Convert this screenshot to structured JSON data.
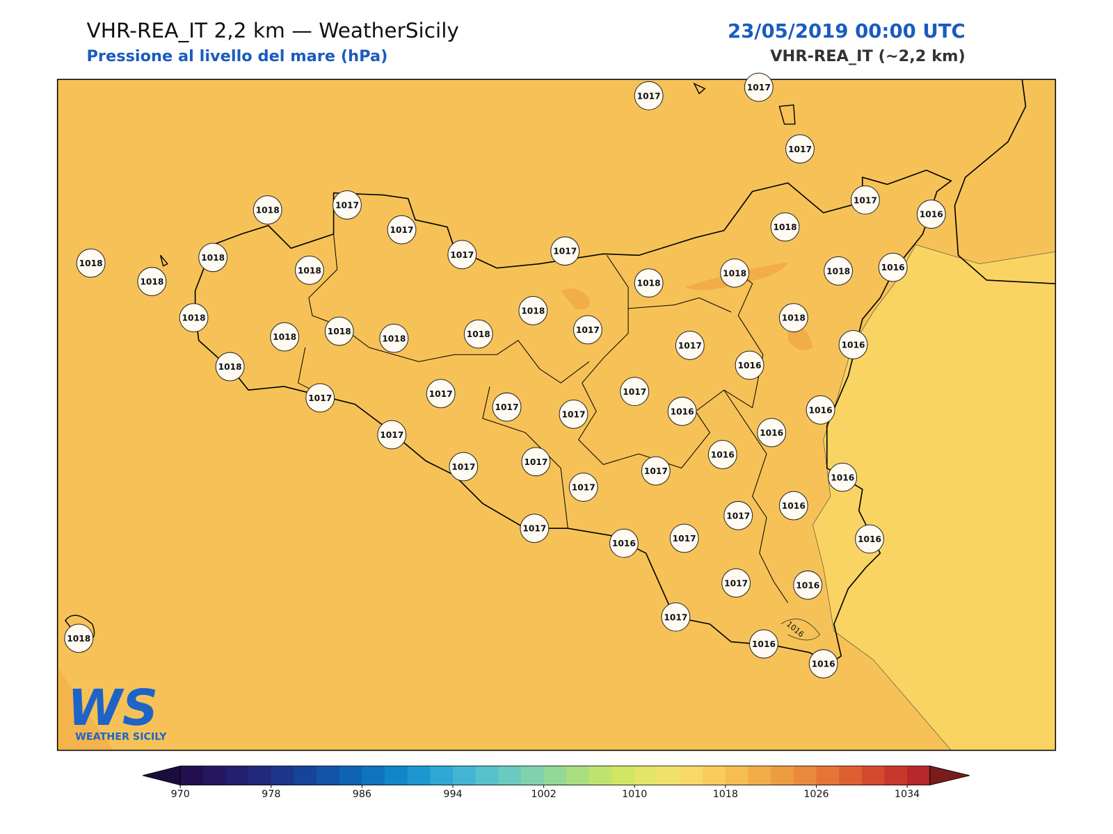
{
  "header": {
    "title": "VHR-REA_IT 2,2 km — WeatherSicily",
    "subtitle": "Pressione al livello del mare (hPa)",
    "datetime": "23/05/2019 00:00 UTC",
    "model": "VHR-REA_IT (~2,2 km)"
  },
  "map": {
    "stations": [
      1017,
      1017,
      1017,
      1018,
      1017,
      1017,
      1017,
      1017,
      1017,
      1016,
      1018,
      1018,
      1018,
      1018,
      1018,
      1018,
      1018,
      1018,
      1016,
      1018,
      1018,
      1018,
      1018,
      1018,
      1018,
      1017,
      1018,
      1017,
      1016,
      1016,
      1018,
      1017,
      1017,
      1017,
      1017,
      1017,
      1016,
      1016,
      1016,
      1017,
      1017,
      1017,
      1017,
      1017,
      1016,
      1016,
      1017,
      1016,
      1017,
      1016,
      1017,
      1016,
      1017,
      1016,
      1017,
      1016,
      1016,
      1018
    ],
    "contour_label": "1016",
    "logo": {
      "mark": "WS",
      "text": "WEATHER SICILY"
    }
  },
  "colorbar": {
    "range": [
      970,
      1036
    ],
    "ticks": [
      970,
      978,
      986,
      994,
      1002,
      1010,
      1018,
      1026,
      1034
    ],
    "colors": [
      "#22104e",
      "#24175e",
      "#241f6e",
      "#22297d",
      "#1d368c",
      "#17449a",
      "#1253a8",
      "#0f63b5",
      "#0e74c0",
      "#1286c9",
      "#1e97d0",
      "#2ea7d4",
      "#43b5d3",
      "#57c1cc",
      "#6bcabf",
      "#7fd2ad",
      "#94d897",
      "#aadf80",
      "#bfe46d",
      "#d2e665",
      "#e3e468",
      "#f1e06a",
      "#f8d866",
      "#f9cc5d",
      "#f5bd52",
      "#f2ad48",
      "#ee9c41",
      "#ea893b",
      "#e57536",
      "#de6032",
      "#d44a2f",
      "#c8372c",
      "#b8272a"
    ],
    "under_color": "#1b0c3e",
    "over_color": "#7a1c1c"
  }
}
